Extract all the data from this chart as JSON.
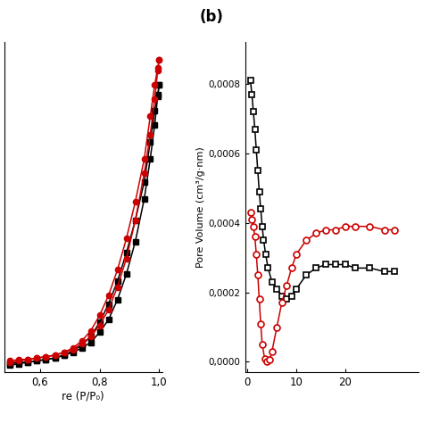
{
  "title_b": "(b)",
  "panel_a": {
    "xlabel": "re (P/P₀)",
    "xlim": [
      0.48,
      1.01
    ],
    "ylim": [
      -2,
      230
    ],
    "xticks": [
      0.6,
      0.8,
      1.0
    ],
    "xticklabels": [
      "0,6",
      "0,8",
      "1,0"
    ],
    "red_adsorb_x": [
      0.5,
      0.53,
      0.56,
      0.59,
      0.62,
      0.65,
      0.68,
      0.71,
      0.74,
      0.77,
      0.8,
      0.83,
      0.86,
      0.89,
      0.92,
      0.95,
      0.97,
      0.985,
      0.995,
      1.0
    ],
    "red_adsorb_y": [
      6,
      7,
      7,
      8,
      9,
      10,
      12,
      14,
      18,
      23,
      31,
      42,
      58,
      78,
      105,
      138,
      165,
      190,
      210,
      218
    ],
    "red_desorp_x": [
      1.0,
      0.995,
      0.985,
      0.97,
      0.95,
      0.92,
      0.89,
      0.86,
      0.83,
      0.8,
      0.77,
      0.74,
      0.71,
      0.68,
      0.65,
      0.62,
      0.59,
      0.56,
      0.53,
      0.5
    ],
    "red_desorp_y": [
      218,
      212,
      200,
      178,
      148,
      118,
      92,
      70,
      52,
      38,
      27,
      20,
      15,
      12,
      10,
      9,
      8,
      7,
      6,
      5
    ],
    "black_adsorb_x": [
      0.5,
      0.53,
      0.56,
      0.59,
      0.62,
      0.65,
      0.68,
      0.71,
      0.74,
      0.77,
      0.8,
      0.83,
      0.86,
      0.89,
      0.92,
      0.95,
      0.97,
      0.985,
      0.995,
      1.0
    ],
    "black_adsorb_y": [
      4,
      5,
      5,
      6,
      7,
      8,
      10,
      12,
      15,
      19,
      26,
      35,
      49,
      67,
      90,
      120,
      148,
      172,
      192,
      200
    ],
    "black_desorp_x": [
      1.0,
      0.995,
      0.985,
      0.97,
      0.95,
      0.92,
      0.89,
      0.86,
      0.83,
      0.8,
      0.77,
      0.74,
      0.71,
      0.68,
      0.65,
      0.62,
      0.59,
      0.56,
      0.53,
      0.5
    ],
    "black_desorp_y": [
      200,
      193,
      182,
      160,
      132,
      105,
      82,
      62,
      46,
      33,
      23,
      17,
      13,
      10,
      8,
      7,
      6,
      5,
      4,
      3
    ]
  },
  "panel_b": {
    "ylabel": "Pore Volume (cm³/g·nm)",
    "xlim": [
      -0.5,
      35
    ],
    "ylim": [
      -3e-05,
      0.00092
    ],
    "xticks": [
      0,
      10,
      20
    ],
    "xticklabels": [
      "0",
      "10",
      "20"
    ],
    "yticks": [
      0.0,
      0.0002,
      0.0004,
      0.0006,
      0.0008
    ],
    "yticklabels": [
      "0,0000",
      "0,0002",
      "0,0004",
      "0,0006",
      "0,0008"
    ],
    "black_sq_x": [
      0.6,
      0.9,
      1.2,
      1.5,
      1.8,
      2.1,
      2.4,
      2.7,
      3.0,
      3.3,
      3.7,
      4.2,
      5.0,
      6.0,
      7.0,
      8.0,
      9.0,
      10.0,
      12.0,
      14.0,
      16.0,
      18.0,
      20.0,
      22.0,
      25.0,
      28.0,
      30.0
    ],
    "black_sq_y": [
      0.00081,
      0.00077,
      0.00072,
      0.00067,
      0.00061,
      0.00055,
      0.00049,
      0.00044,
      0.00039,
      0.00035,
      0.00031,
      0.00027,
      0.00023,
      0.00021,
      0.00019,
      0.00018,
      0.00019,
      0.00021,
      0.00025,
      0.00027,
      0.00028,
      0.00028,
      0.00028,
      0.00027,
      0.00027,
      0.00026,
      0.00026
    ],
    "red_circ_x": [
      0.6,
      0.9,
      1.2,
      1.5,
      1.8,
      2.1,
      2.4,
      2.7,
      3.0,
      3.5,
      4.0,
      4.5,
      5.0,
      6.0,
      7.0,
      8.0,
      9.0,
      10.0,
      12.0,
      14.0,
      16.0,
      18.0,
      20.0,
      22.0,
      25.0,
      28.0,
      30.0
    ],
    "red_circ_y": [
      0.00043,
      0.00041,
      0.00039,
      0.00036,
      0.00031,
      0.00025,
      0.00018,
      0.00011,
      5e-05,
      1e-05,
      2e-06,
      5e-06,
      3e-05,
      0.0001,
      0.00017,
      0.00022,
      0.00027,
      0.00031,
      0.00035,
      0.00037,
      0.00038,
      0.00038,
      0.00039,
      0.00039,
      0.00039,
      0.00038,
      0.00038
    ]
  }
}
